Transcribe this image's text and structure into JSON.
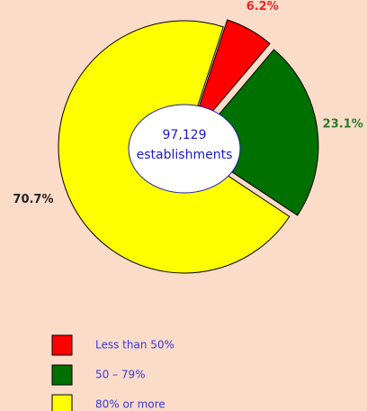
{
  "chart_data": {
    "type": "donut",
    "center_text": [
      "97,129",
      "establishments"
    ],
    "categories": [
      "Less than 50%",
      "50 – 79%",
      "80% or more"
    ],
    "values": [
      6.2,
      23.1,
      70.7
    ],
    "value_labels": [
      "6.2%",
      "23.1%",
      "70.7%"
    ],
    "colors": [
      "#ff0000",
      "#007000",
      "#ffff00"
    ],
    "label_colors": [
      "#e8282a",
      "#2a7a2a",
      "#222222"
    ],
    "explode": [
      true,
      true,
      false
    ],
    "legend": "bottom-left"
  }
}
